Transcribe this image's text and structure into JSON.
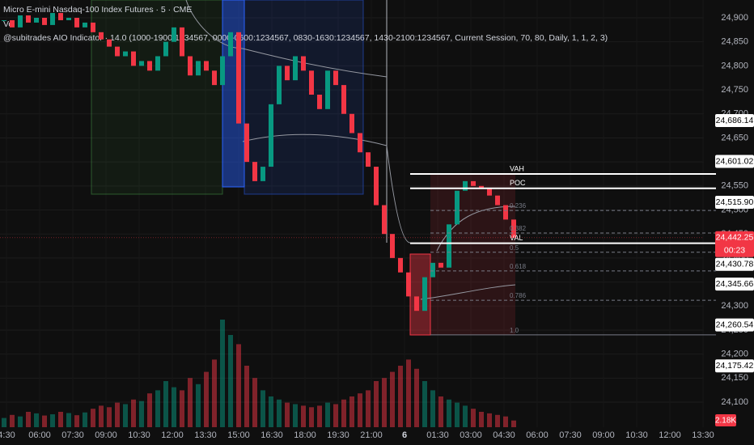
{
  "header": {
    "symbol": "Micro E-mini Nasdaq-100 Index Futures · 5 · CME",
    "volume_indicator": "Vol",
    "indicator": "@subitrades AIO Indicator · 14.0 (1000-1900:1234567, 0000-0600:1234567, 0830-1630:1234567, 1430-2100:1234567, Current Session, 70, 80, Daily, 1, 1, 2, 3)"
  },
  "price_axis": {
    "ylim": [
      24047.8,
      24937.05
    ],
    "ticks": [
      {
        "value": 24100,
        "label": "24,100"
      },
      {
        "value": 24150,
        "label": "24,150"
      },
      {
        "value": 24200,
        "label": "24,200"
      },
      {
        "value": 24250,
        "label": "24,250"
      },
      {
        "value": 24300,
        "label": "24,300"
      },
      {
        "value": 24350,
        "label": "24,350"
      },
      {
        "value": 24400,
        "label": "24,400"
      },
      {
        "value": 24450,
        "label": "24,450"
      },
      {
        "value": 24500,
        "label": "24,500"
      },
      {
        "value": 24550,
        "label": "24,550"
      },
      {
        "value": 24600,
        "label": "24,600"
      },
      {
        "value": 24650,
        "label": "24,650"
      },
      {
        "value": 24700,
        "label": "24,700"
      },
      {
        "value": 24750,
        "label": "24,750"
      },
      {
        "value": 24800,
        "label": "24,800"
      },
      {
        "value": 24850,
        "label": "24,850"
      },
      {
        "value": 24900,
        "label": "24,900"
      }
    ]
  },
  "time_axis": {
    "labels": [
      "4:30",
      "06:00",
      "07:30",
      "09:00",
      "10:30",
      "12:00",
      "13:30",
      "15:00",
      "16:30",
      "18:00",
      "19:30",
      "21:00",
      "6",
      "01:30",
      "03:00",
      "04:30",
      "06:00",
      "07:30",
      "09:00",
      "10:30",
      "12:00",
      "13:30"
    ]
  },
  "candles": {
    "closes": [
      24895,
      24880,
      24905,
      24890,
      24900,
      24885,
      24910,
      24895,
      24900,
      24880,
      24890,
      24870,
      24855,
      24840,
      24820,
      24830,
      24800,
      24810,
      24790,
      24820,
      24850,
      24880,
      24820,
      24780,
      24810,
      24790,
      24760,
      24820,
      24870,
      24680,
      24600,
      24560,
      24590,
      24720,
      24800,
      24770,
      24820,
      24790,
      24740,
      24710,
      24790,
      24760,
      24700,
      24660,
      24620,
      24590,
      24510,
      24450,
      24400,
      24370,
      24320,
      24290,
      24360,
      24390,
      24380,
      24470,
      24540,
      24560,
      24550,
      24545,
      24530,
      24510,
      24480,
      24442.25
    ]
  },
  "volume": {
    "values": [
      3000,
      4000,
      3500,
      5000,
      4500,
      3800,
      4200,
      5000,
      4600,
      3900,
      4800,
      6000,
      7000,
      6500,
      8000,
      7500,
      9000,
      8500,
      11000,
      12000,
      15000,
      13000,
      12000,
      16000,
      14000,
      18000,
      22000,
      35000,
      30000,
      27000,
      20000,
      16000,
      12000,
      10000,
      9000,
      8000,
      7500,
      7000,
      6500,
      7000,
      8000,
      7500,
      9000,
      10000,
      11000,
      12000,
      15000,
      16000,
      18000,
      20000,
      22000,
      19000,
      15000,
      12000,
      10000,
      9000,
      8000,
      7000,
      6000,
      5000,
      4500,
      4000,
      3500,
      2180
    ],
    "last_label": "2.18K"
  },
  "price_tags": [
    {
      "value": 24686.14,
      "label": "24,686.14",
      "color": "#ffffff"
    },
    {
      "value": 24601.02,
      "label": "24,601.02",
      "color": "#ffffff"
    },
    {
      "value": 24515.9,
      "label": "24,515.90",
      "color": "#ffffff"
    },
    {
      "value": 24442.25,
      "label": "24,442.25",
      "color": "#f23645"
    },
    {
      "value": 24430.78,
      "label": "24,430.78",
      "color": "#ffffff"
    },
    {
      "value": 24345.66,
      "label": "24,345.66",
      "color": "#ffffff"
    },
    {
      "value": 24260.54,
      "label": "24,260.54",
      "color": "#ffffff"
    },
    {
      "value": 24175.42,
      "label": "24,175.42",
      "color": "#ffffff"
    }
  ],
  "countdown": "00:23",
  "levels": [
    {
      "label": "VAH",
      "price": 24575,
      "style": "solid"
    },
    {
      "label": "POC",
      "price": 24545,
      "style": "solid"
    },
    {
      "label": "VAL",
      "price": 24430.78,
      "style": "solid"
    },
    {
      "label": "0.236",
      "price": 24499,
      "style": "dashed"
    },
    {
      "label": "0.382",
      "price": 24452,
      "style": "dashed"
    },
    {
      "label": "0.5",
      "price": 24412,
      "style": "dashed"
    },
    {
      "label": "0.618",
      "price": 24373,
      "style": "dashed"
    },
    {
      "label": "0.786",
      "price": 24312,
      "style": "dashed"
    },
    {
      "label": "1.0",
      "price": 24240,
      "style": "thin"
    }
  ]
}
